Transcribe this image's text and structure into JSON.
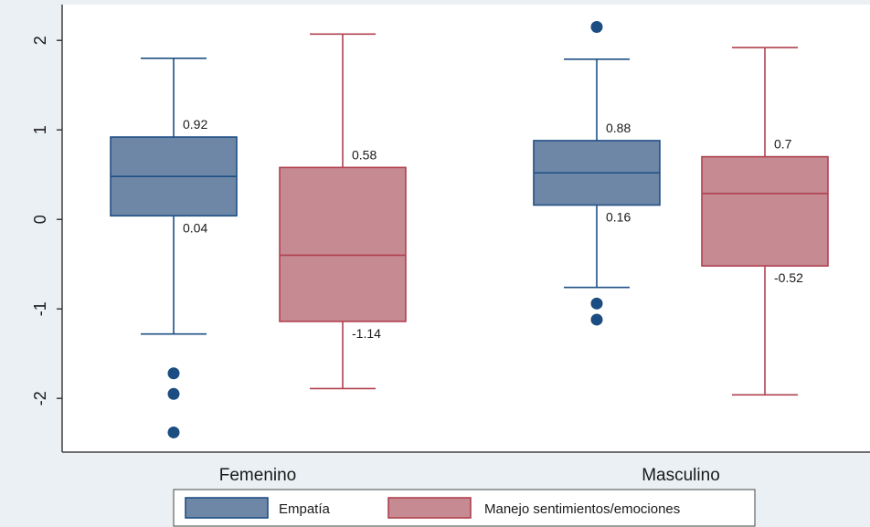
{
  "chart_data": {
    "type": "boxplot",
    "categories": [
      "Femenino",
      "Masculino"
    ],
    "ylim": [
      -2.6,
      2.4
    ],
    "yticks": [
      -2,
      -1,
      0,
      1,
      2
    ],
    "ytick_labels": [
      "-2",
      "-1",
      "0",
      "1",
      "2"
    ],
    "grid": false,
    "legend_position": "bottom",
    "series": [
      {
        "name": "Empatía",
        "color": "#6f87a6",
        "edge_color": "#1f4f85",
        "boxes": [
          {
            "category": "Femenino",
            "q1": 0.04,
            "median": 0.48,
            "q3": 0.92,
            "whisker_low": -1.28,
            "whisker_high": 1.8,
            "outliers": [
              -1.72,
              -1.95,
              -2.38
            ],
            "q1_label": "0.04",
            "q3_label": "0.92"
          },
          {
            "category": "Masculino",
            "q1": 0.16,
            "median": 0.52,
            "q3": 0.88,
            "whisker_low": -0.76,
            "whisker_high": 1.79,
            "outliers": [
              2.15,
              -0.94,
              -1.12
            ],
            "q1_label": "0.16",
            "q3_label": "0.88"
          }
        ]
      },
      {
        "name": "Manejo sentimientos/emociones",
        "color": "#c58a92",
        "edge_color": "#b0414f",
        "boxes": [
          {
            "category": "Femenino",
            "q1": -1.14,
            "median": -0.4,
            "q3": 0.58,
            "whisker_low": -1.89,
            "whisker_high": 2.07,
            "outliers": [],
            "q1_label": "-1.14",
            "q3_label": "0.58"
          },
          {
            "category": "Masculino",
            "q1": -0.52,
            "median": 0.29,
            "q3": 0.7,
            "whisker_low": -1.96,
            "whisker_high": 1.92,
            "outliers": [],
            "q1_label": "-0.52",
            "q3_label": "0.7"
          }
        ]
      }
    ]
  }
}
